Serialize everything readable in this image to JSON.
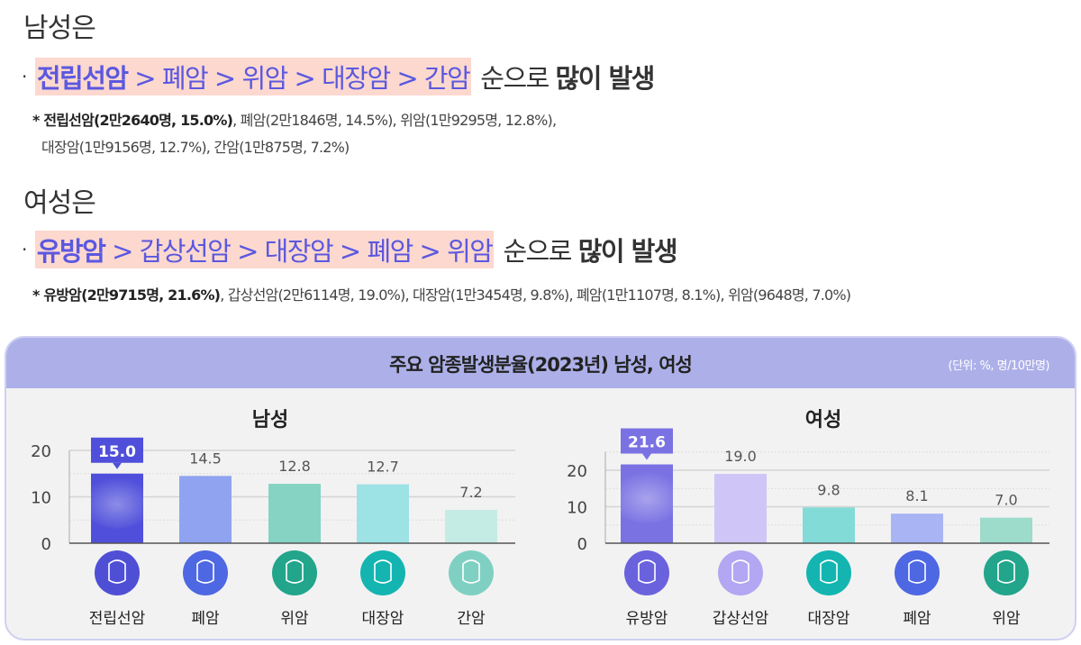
{
  "male_section": {
    "heading": "남성은",
    "ranking": [
      "전립선암",
      "폐암",
      "위암",
      "대장암",
      "간암"
    ],
    "separator": ">",
    "suffix_plain": "순으로",
    "suffix_bold": "많이 발생",
    "note_line1_bold": "* 전립선암(2만2640명, 15.0%)",
    "note_line1_rest": ", 폐암(2만1846명, 14.5%), 위암(1만9295명, 12.8%),",
    "note_line2": "대장암(1만9156명, 12.7%), 간암(1만875명, 7.2%)"
  },
  "female_section": {
    "heading": "여성은",
    "ranking": [
      "유방암",
      "갑상선암",
      "대장암",
      "폐암",
      "위암"
    ],
    "separator": ">",
    "suffix_plain": "순으로",
    "suffix_bold": "많이 발생",
    "note_bold": "* 유방암(2만9715명, 21.6%)",
    "note_rest": ", 갑상선암(2만6114명, 19.0%), 대장암(1만3454명, 9.8%), 폐암(1만1107명, 8.1%), 위암(9648명, 7.0%)"
  },
  "panel": {
    "title": "주요 암종발생분율(2023년) 남성, 여성",
    "unit": "(단위: %, 명/10만명)"
  },
  "chart_data": [
    {
      "type": "bar",
      "title": "남성",
      "categories": [
        "전립선암",
        "폐암",
        "위암",
        "대장암",
        "간암"
      ],
      "values": [
        15.0,
        14.5,
        12.8,
        12.7,
        7.2
      ],
      "value_labels": [
        "15.0",
        "14.5",
        "12.8",
        "12.7",
        "7.2"
      ],
      "yticks": [
        "0",
        "10",
        "20"
      ],
      "ylim": [
        0,
        20
      ],
      "grid": true,
      "highlight_index": 0,
      "colors": [
        "#4f4fdb",
        "#8fa3f0",
        "#86d3c3",
        "#9de2e5",
        "#c5ebe5"
      ],
      "icons": [
        "prostate-icon",
        "lungs-icon",
        "stomach-icon",
        "colon-icon",
        "liver-icon"
      ],
      "icon_colors": [
        "#4f4fd6",
        "#4e67e3",
        "#22a58b",
        "#14b5b1",
        "#7fd0c3"
      ]
    },
    {
      "type": "bar",
      "title": "여성",
      "categories": [
        "유방암",
        "갑상선암",
        "대장암",
        "폐암",
        "위암"
      ],
      "values": [
        21.6,
        19.0,
        9.8,
        8.1,
        7.0
      ],
      "value_labels": [
        "21.6",
        "19.0",
        "9.8",
        "8.1",
        "7.0"
      ],
      "yticks": [
        "0",
        "10",
        "20"
      ],
      "ylim": [
        0,
        25
      ],
      "grid": true,
      "highlight_index": 0,
      "colors": [
        "#7a72e3",
        "#cfc6f7",
        "#83dbd7",
        "#a8b4f3",
        "#9ddbcb"
      ],
      "icons": [
        "breast-icon",
        "thyroid-icon",
        "colon-icon",
        "lungs-icon",
        "stomach-icon"
      ],
      "icon_colors": [
        "#6a62dd",
        "#b3a6f2",
        "#14b5b1",
        "#4e67e3",
        "#22a58b"
      ]
    }
  ]
}
